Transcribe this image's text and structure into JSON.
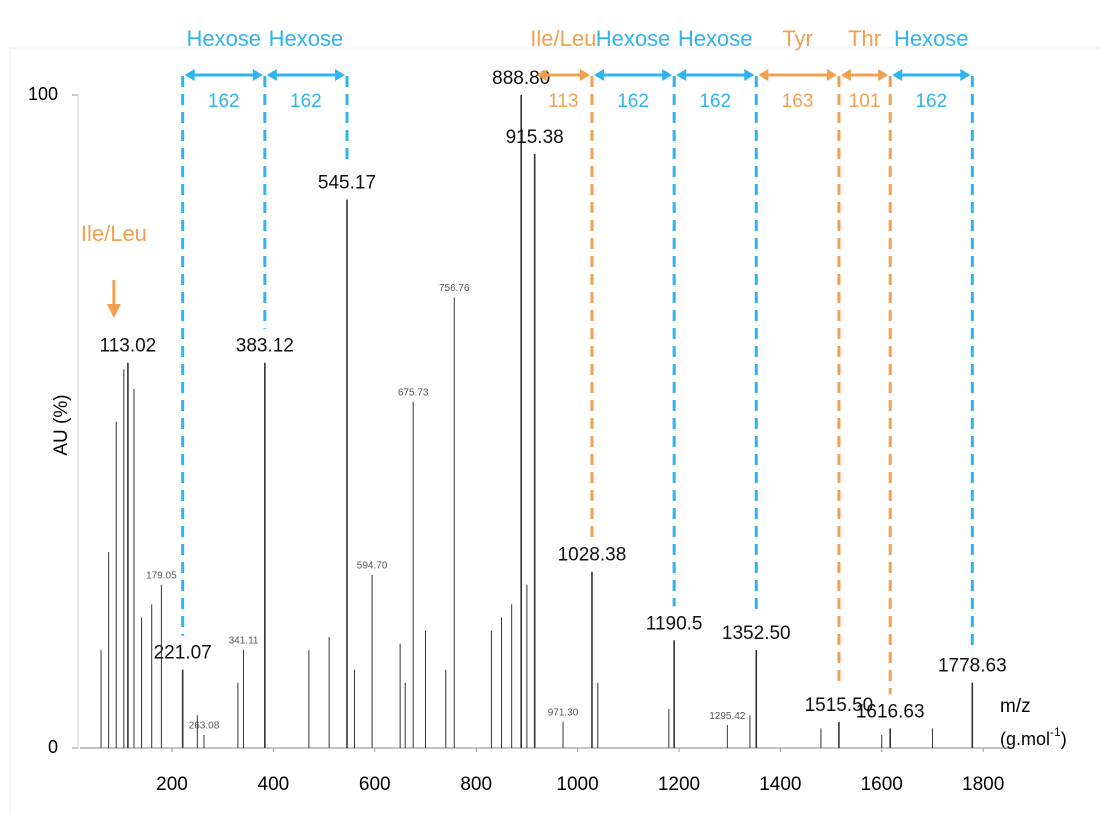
{
  "chart_data": {
    "type": "spectrum",
    "y_label": "AU (%)",
    "x_label": "m/z",
    "x_unit_parts": [
      "(g.mol",
      "-1",
      ")"
    ],
    "xlim": [
      0,
      1850
    ],
    "xticks": [
      200,
      400,
      600,
      800,
      1000,
      1200,
      1400,
      1600,
      1800
    ],
    "ylim": [
      0,
      100
    ],
    "yticks": [
      0,
      100
    ],
    "color": "#333333",
    "x": [
      113.02,
      221.07,
      383.12,
      545.17,
      888.8,
      915.38,
      1028.38,
      1190.5,
      1352.5,
      1515.5,
      1616.63,
      1778.63,
      179.05,
      263.08,
      341.11,
      594.7,
      675.73,
      756.76,
      971.3,
      1295.42,
      60,
      75,
      90,
      105,
      125,
      140,
      160,
      250,
      330,
      470,
      510,
      560,
      650,
      660,
      700,
      740,
      830,
      850,
      870,
      900,
      1040,
      1180,
      1340,
      1480,
      1600,
      1700
    ],
    "values": [
      59,
      12,
      59,
      84,
      100,
      91,
      27,
      16.5,
      15,
      4,
      3,
      10,
      25,
      2,
      15,
      26.5,
      53,
      69,
      4,
      3.5,
      15,
      30,
      50,
      58,
      55,
      20,
      22,
      5,
      10,
      15,
      17,
      12,
      16,
      10,
      18,
      12,
      18,
      20,
      22,
      25,
      10,
      6,
      5,
      3,
      2,
      3
    ],
    "x_labels": [
      "113.02",
      "221.07",
      "383.12",
      "545.17",
      "888.80",
      "915.38",
      "1028.38",
      "1190.5",
      "1352.50",
      "1515.50",
      "1616.63",
      "1778.63",
      "179.05",
      "263.08",
      "341.11",
      "594.70",
      "675.73",
      "756.76",
      "971.30",
      "1295.42",
      null,
      null,
      null,
      null,
      null,
      null,
      null,
      null,
      null,
      null,
      null,
      null,
      null,
      null,
      null,
      null,
      null,
      null,
      null,
      null,
      null,
      null,
      null,
      null,
      null,
      null
    ],
    "emphasis": [
      true,
      true,
      true,
      true,
      true,
      true,
      true,
      true,
      true,
      true,
      true,
      true,
      false,
      false,
      false,
      false,
      false,
      false,
      false,
      false,
      false,
      false,
      false,
      false,
      false,
      false,
      false,
      false,
      false,
      false,
      false,
      false,
      false,
      false,
      false,
      false,
      false,
      false,
      false,
      false,
      false,
      false,
      false,
      false,
      false,
      false
    ],
    "chains": [
      {
        "start_line": true,
        "fragments": [
          {
            "from": 221.07,
            "to": 383.12,
            "delta": 162,
            "residue": "Hexose",
            "color": "#2fb4ee"
          },
          {
            "from": 383.12,
            "to": 545.17,
            "delta": 162,
            "residue": "Hexose",
            "color": "#2fb4ee"
          }
        ]
      },
      {
        "start_line": false,
        "fragments": [
          {
            "from": 915.38,
            "to": 1028.38,
            "delta": 113,
            "residue": "Ile/Leu",
            "color": "#f0a050"
          },
          {
            "from": 1028.38,
            "to": 1190.5,
            "delta": 162,
            "residue": "Hexose",
            "color": "#2fb4ee"
          },
          {
            "from": 1190.5,
            "to": 1352.5,
            "delta": 162,
            "residue": "Hexose",
            "color": "#2fb4ee"
          },
          {
            "from": 1352.5,
            "to": 1515.5,
            "delta": 163,
            "residue": "Tyr",
            "color": "#f0a050"
          },
          {
            "from": 1515.5,
            "to": 1616.63,
            "delta": 101,
            "residue": "Thr",
            "color": "#f0a050"
          },
          {
            "from": 1616.63,
            "to": 1778.63,
            "delta": 162,
            "residue": "Hexose",
            "color": "#2fb4ee"
          }
        ]
      }
    ],
    "marker": {
      "text": "Ile/Leu",
      "x": 113.02,
      "color": "#f0a050"
    }
  }
}
